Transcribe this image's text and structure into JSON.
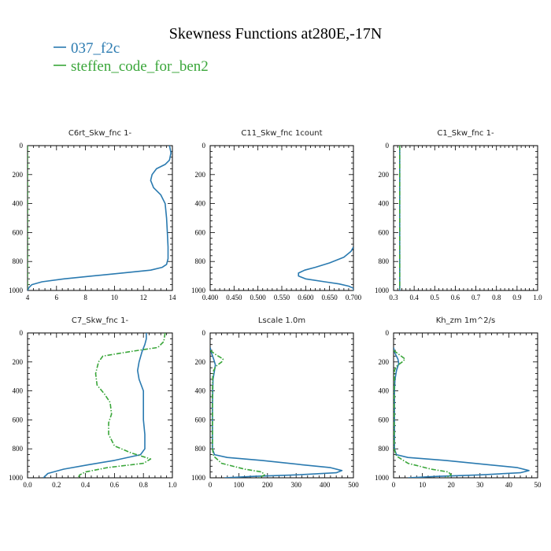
{
  "title": "Skewness Functions at280E,-17N",
  "legend": [
    {
      "name": "037_f2c",
      "color": "#2a7ab0"
    },
    {
      "name": "steffen_code_for_ben2",
      "color": "#3aa63a"
    }
  ],
  "chart_data": [
    {
      "type": "line",
      "title": "C6rt_Skw_fnc  1-",
      "xlim": [
        4,
        14
      ],
      "ylim": [
        1000,
        0
      ],
      "xticks": [
        "4",
        "6",
        "8",
        "10",
        "12",
        "14"
      ],
      "yticks": [
        "0",
        "200",
        "400",
        "600",
        "800",
        "1000"
      ],
      "series": [
        {
          "color": "#2a7ab0",
          "dashed": false,
          "points": [
            [
              13.8,
              0
            ],
            [
              13.9,
              50
            ],
            [
              13.8,
              100
            ],
            [
              13.5,
              130
            ],
            [
              12.9,
              160
            ],
            [
              12.6,
              200
            ],
            [
              12.5,
              240
            ],
            [
              12.7,
              290
            ],
            [
              13.2,
              340
            ],
            [
              13.5,
              400
            ],
            [
              13.6,
              500
            ],
            [
              13.65,
              600
            ],
            [
              13.7,
              700
            ],
            [
              13.7,
              780
            ],
            [
              13.6,
              820
            ],
            [
              13.3,
              840
            ],
            [
              12.5,
              860
            ],
            [
              10.5,
              880
            ],
            [
              8.5,
              900
            ],
            [
              6.5,
              920
            ],
            [
              5.0,
              940
            ],
            [
              4.3,
              960
            ],
            [
              4.1,
              980
            ],
            [
              4.0,
              1000
            ]
          ]
        },
        {
          "color": "#3aa63a",
          "dashed": true,
          "points": [
            [
              4.0,
              0
            ],
            [
              4.0,
              1000
            ]
          ]
        }
      ]
    },
    {
      "type": "line",
      "title": "C11_Skw_fnc  1count",
      "xlim": [
        0.4,
        0.7
      ],
      "ylim": [
        1000,
        0
      ],
      "xticks": [
        "0.400",
        "0.450",
        "0.500",
        "0.550",
        "0.600",
        "0.650",
        "0.700"
      ],
      "yticks": [
        "0",
        "200",
        "400",
        "600",
        "800",
        "1000"
      ],
      "series": [
        {
          "color": "#2a7ab0",
          "dashed": false,
          "points": [
            [
              0.7,
              700
            ],
            [
              0.695,
              730
            ],
            [
              0.68,
              770
            ],
            [
              0.65,
              810
            ],
            [
              0.62,
              840
            ],
            [
              0.598,
              860
            ],
            [
              0.585,
              880
            ],
            [
              0.585,
              900
            ],
            [
              0.6,
              920
            ],
            [
              0.64,
              940
            ],
            [
              0.67,
              955
            ],
            [
              0.69,
              970
            ],
            [
              0.7,
              985
            ],
            [
              0.7,
              1000
            ]
          ]
        }
      ]
    },
    {
      "type": "line",
      "title": "C1_Skw_fnc  1-",
      "xlim": [
        0.3,
        1.0
      ],
      "ylim": [
        1000,
        0
      ],
      "xticks": [
        "0.3",
        "0.4",
        "0.5",
        "0.6",
        "0.7",
        "0.8",
        "0.9",
        "1.0"
      ],
      "yticks": [
        "0",
        "200",
        "400",
        "600",
        "800",
        "1000"
      ],
      "series": [
        {
          "color": "#2a7ab0",
          "dashed": false,
          "points": [
            [
              0.33,
              0
            ],
            [
              0.33,
              1000
            ]
          ]
        },
        {
          "color": "#3aa63a",
          "dashed": true,
          "points": [
            [
              0.33,
              0
            ],
            [
              0.33,
              1000
            ]
          ]
        }
      ]
    },
    {
      "type": "line",
      "title": "C7_Skw_fnc  1-",
      "xlim": [
        0.0,
        1.0
      ],
      "ylim": [
        1000,
        0
      ],
      "xticks": [
        "0.0",
        "0.2",
        "0.4",
        "0.6",
        "0.8",
        "1.0"
      ],
      "yticks": [
        "0",
        "200",
        "400",
        "600",
        "800",
        "1000"
      ],
      "series": [
        {
          "color": "#2a7ab0",
          "dashed": false,
          "points": [
            [
              0.82,
              0
            ],
            [
              0.82,
              40
            ],
            [
              0.81,
              80
            ],
            [
              0.79,
              130
            ],
            [
              0.77,
              200
            ],
            [
              0.76,
              260
            ],
            [
              0.77,
              320
            ],
            [
              0.8,
              400
            ],
            [
              0.8,
              500
            ],
            [
              0.8,
              600
            ],
            [
              0.81,
              700
            ],
            [
              0.81,
              800
            ],
            [
              0.78,
              840
            ],
            [
              0.6,
              880
            ],
            [
              0.42,
              910
            ],
            [
              0.25,
              940
            ],
            [
              0.14,
              970
            ],
            [
              0.11,
              1000
            ]
          ]
        },
        {
          "color": "#3aa63a",
          "dashed": true,
          "points": [
            [
              0.95,
              0
            ],
            [
              0.94,
              60
            ],
            [
              0.9,
              100
            ],
            [
              0.7,
              130
            ],
            [
              0.52,
              160
            ],
            [
              0.49,
              200
            ],
            [
              0.47,
              280
            ],
            [
              0.48,
              360
            ],
            [
              0.53,
              420
            ],
            [
              0.57,
              480
            ],
            [
              0.58,
              560
            ],
            [
              0.56,
              620
            ],
            [
              0.56,
              700
            ],
            [
              0.6,
              780
            ],
            [
              0.72,
              830
            ],
            [
              0.85,
              870
            ],
            [
              0.8,
              900
            ],
            [
              0.55,
              930
            ],
            [
              0.4,
              960
            ],
            [
              0.36,
              980
            ],
            [
              0.35,
              1000
            ]
          ]
        }
      ]
    },
    {
      "type": "line",
      "title": "Lscale  1.0m",
      "xlim": [
        0,
        500
      ],
      "ylim": [
        1000,
        0
      ],
      "xticks": [
        "0",
        "100",
        "200",
        "300",
        "400",
        "500"
      ],
      "yticks": [
        "0",
        "200",
        "400",
        "600",
        "800",
        "1000"
      ],
      "series": [
        {
          "color": "#2a7ab0",
          "dashed": false,
          "points": [
            [
              0,
              100
            ],
            [
              5,
              140
            ],
            [
              12,
              180
            ],
            [
              18,
              220
            ],
            [
              15,
              260
            ],
            [
              10,
              320
            ],
            [
              9,
              400
            ],
            [
              8,
              500
            ],
            [
              8,
              600
            ],
            [
              8,
              700
            ],
            [
              8,
              800
            ],
            [
              15,
              840
            ],
            [
              60,
              860
            ],
            [
              180,
              880
            ],
            [
              320,
              910
            ],
            [
              420,
              930
            ],
            [
              460,
              950
            ],
            [
              440,
              965
            ],
            [
              300,
              980
            ],
            [
              150,
              990
            ],
            [
              50,
              1000
            ]
          ]
        },
        {
          "color": "#3aa63a",
          "dashed": true,
          "points": [
            [
              0,
              120
            ],
            [
              20,
              150
            ],
            [
              45,
              180
            ],
            [
              40,
              200
            ],
            [
              20,
              230
            ],
            [
              12,
              260
            ],
            [
              9,
              300
            ],
            [
              8,
              400
            ],
            [
              8,
              500
            ],
            [
              8,
              600
            ],
            [
              8,
              700
            ],
            [
              8,
              800
            ],
            [
              12,
              850
            ],
            [
              40,
              900
            ],
            [
              120,
              940
            ],
            [
              180,
              960
            ],
            [
              190,
              980
            ],
            [
              170,
              1000
            ]
          ]
        }
      ]
    },
    {
      "type": "line",
      "title": "Kh_zm  1m^2/s",
      "xlim": [
        0,
        50
      ],
      "ylim": [
        1000,
        0
      ],
      "xticks": [
        "0",
        "10",
        "20",
        "30",
        "40",
        "50"
      ],
      "yticks": [
        "0",
        "200",
        "400",
        "600",
        "800",
        "1000"
      ],
      "series": [
        {
          "color": "#2a7ab0",
          "dashed": false,
          "points": [
            [
              0,
              100
            ],
            [
              0.5,
              140
            ],
            [
              1.5,
              180
            ],
            [
              1.8,
              210
            ],
            [
              1,
              260
            ],
            [
              0.5,
              320
            ],
            [
              0.3,
              400
            ],
            [
              0.3,
              600
            ],
            [
              0.3,
              800
            ],
            [
              1,
              840
            ],
            [
              5,
              860
            ],
            [
              18,
              880
            ],
            [
              33,
              910
            ],
            [
              43,
              930
            ],
            [
              47,
              950
            ],
            [
              44,
              965
            ],
            [
              30,
              980
            ],
            [
              15,
              990
            ],
            [
              5,
              1000
            ]
          ]
        },
        {
          "color": "#3aa63a",
          "dashed": true,
          "points": [
            [
              0,
              120
            ],
            [
              2,
              150
            ],
            [
              4,
              180
            ],
            [
              3,
              200
            ],
            [
              1,
              230
            ],
            [
              0.3,
              260
            ],
            [
              0.2,
              400
            ],
            [
              0.2,
              800
            ],
            [
              1,
              850
            ],
            [
              5,
              900
            ],
            [
              13,
              940
            ],
            [
              19,
              960
            ],
            [
              20,
              980
            ],
            [
              18,
              1000
            ]
          ]
        }
      ]
    }
  ]
}
